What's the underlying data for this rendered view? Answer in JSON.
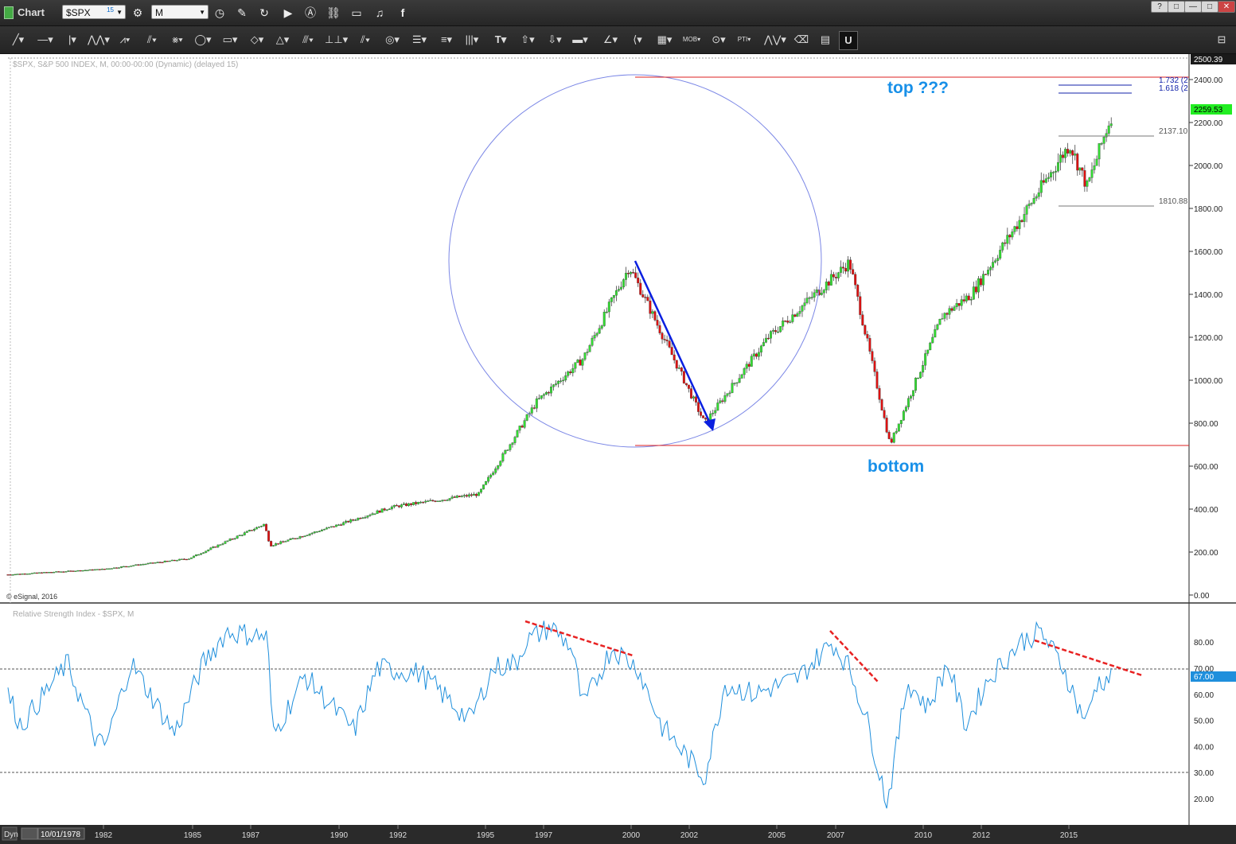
{
  "app": {
    "title": "Chart",
    "symbol": "$SPX",
    "symbol_badge": "15",
    "interval": "M"
  },
  "window_buttons": [
    "?",
    "□",
    "—",
    "□",
    "✕"
  ],
  "chart": {
    "header": "$SPX, S&P 500 INDEX, M, 00:00-00:00 (Dynamic) (delayed 15)",
    "copyright": "© eSignal, 2016",
    "annotations": {
      "top": "top ???",
      "bottom": "bottom"
    },
    "price_tags": {
      "high": "2500.39",
      "last": "2259.53"
    },
    "fib_labels": [
      "1.732 (2",
      "1.618 (2"
    ],
    "level_labels": [
      "2137.10",
      "1810.88"
    ],
    "price_axis": [
      "2400.00",
      "2200.00",
      "2000.00",
      "1800.00",
      "1600.00",
      "1400.00",
      "1200.00",
      "1000.00",
      "800.00",
      "600.00",
      "400.00",
      "200.00",
      "0.00"
    ],
    "rsi_title": "Relative Strength Index - $SPX, M",
    "rsi_axis": [
      "80.00",
      "70.00",
      "60.00",
      "50.00",
      "40.00",
      "30.00",
      "20.00"
    ],
    "rsi_last": "67.00",
    "time_axis": [
      "1982",
      "1985",
      "1987",
      "1990",
      "1992",
      "1995",
      "1997",
      "2000",
      "2002",
      "2005",
      "2007",
      "2010",
      "2012",
      "2015"
    ],
    "dyn_label": "Dyn",
    "start_date": "10/01/1978",
    "colors": {
      "up": "#33dd33",
      "down": "#dd1111",
      "rsi": "#1f8fdc",
      "circle": "#7b87e6",
      "annotation": "#1890e8",
      "level_red": "#dd2222"
    }
  },
  "chart_data": {
    "type": "candlestick",
    "title": "$SPX, S&P 500 INDEX, M",
    "price_range": [
      0,
      2500
    ],
    "price_points": [
      [
        1978.75,
        95
      ],
      [
        1982,
        120
      ],
      [
        1985,
        170
      ],
      [
        1987.6,
        330
      ],
      [
        1987.8,
        230
      ],
      [
        1990,
        320
      ],
      [
        1992,
        410
      ],
      [
        1995,
        470
      ],
      [
        1997,
        900
      ],
      [
        1998.6,
        1100
      ],
      [
        2000.2,
        1530
      ],
      [
        2002.8,
        800
      ],
      [
        2005,
        1200
      ],
      [
        2007.8,
        1550
      ],
      [
        2009.2,
        700
      ],
      [
        2011,
        1300
      ],
      [
        2012,
        1400
      ],
      [
        2015.4,
        2100
      ],
      [
        2016,
        1900
      ],
      [
        2016.9,
        2259.53
      ]
    ],
    "horizontal_levels": [
      2137.1,
      1810.88
    ],
    "rsi": {
      "name": "Relative Strength Index",
      "range": [
        10,
        95
      ],
      "overbought": 70,
      "oversold": 30,
      "last": 67.0
    }
  }
}
